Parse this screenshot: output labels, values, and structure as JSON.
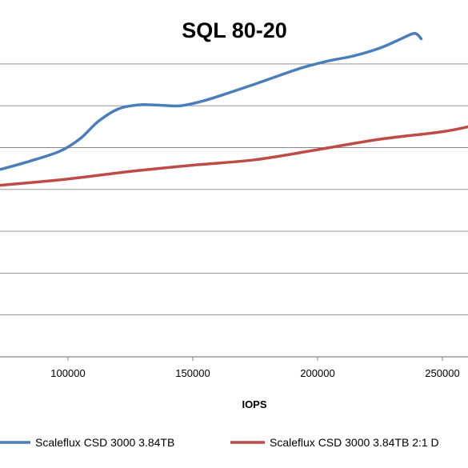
{
  "chart_data": {
    "type": "line",
    "title": "SQL 80-20",
    "xlabel": "IOPS",
    "ylabel": "",
    "xlim": [
      73000,
      262000
    ],
    "ylim": [
      0,
      8
    ],
    "x_ticks": [
      100000,
      150000,
      200000,
      250000
    ],
    "x_tick_labels": [
      "100000",
      "150000",
      "200000",
      "250000"
    ],
    "y_gridlines": [
      0,
      1,
      2,
      3,
      4,
      5,
      6,
      7
    ],
    "grid": true,
    "legend_position": "bottom",
    "series": [
      {
        "name": "Scaleflux CSD 3000 3.84TB",
        "color": "#4a7ebb",
        "x": [
          73000,
          85000,
          97000,
          105000,
          112000,
          120000,
          128000,
          135000,
          145000,
          155000,
          165000,
          175000,
          185000,
          195000,
          205000,
          215000,
          225000,
          232000,
          238000,
          240000,
          241500
        ],
        "y": [
          4.48,
          4.68,
          4.92,
          5.22,
          5.62,
          5.92,
          6.02,
          6.02,
          6.0,
          6.13,
          6.32,
          6.52,
          6.73,
          6.93,
          7.08,
          7.2,
          7.38,
          7.56,
          7.72,
          7.7,
          7.6
        ]
      },
      {
        "name": "Scaleflux CSD 3000 3.84TB 2:1 D",
        "color": "#be4b48",
        "x": [
          73000,
          100000,
          125000,
          150000,
          175000,
          200000,
          225000,
          250000,
          262000
        ],
        "y": [
          4.1,
          4.25,
          4.43,
          4.58,
          4.71,
          4.95,
          5.2,
          5.38,
          5.52
        ]
      }
    ]
  }
}
